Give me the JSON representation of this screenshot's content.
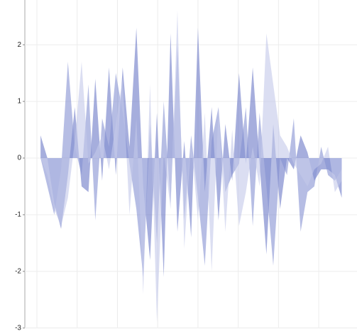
{
  "chart_data": {
    "type": "area",
    "x": [
      0.09,
      0.26,
      0.43,
      0.6,
      0.77,
      0.94,
      1.11,
      1.28,
      1.45,
      1.62,
      1.79,
      1.96,
      2.13,
      2.3,
      2.47,
      2.64,
      2.81,
      2.98,
      3.15,
      3.32,
      3.49,
      3.66,
      3.83,
      4.0,
      4.17,
      4.34,
      4.51,
      4.68,
      4.85,
      5.02,
      5.19,
      5.36,
      5.53,
      5.7,
      5.87,
      6.04,
      6.21,
      6.38,
      6.55,
      6.72,
      6.89,
      7.06,
      7.23,
      7.4,
      7.57
    ],
    "series": [
      {
        "color": "#6b78c6",
        "values": [
          0.4,
          0,
          -0.8,
          -1.25,
          -0.3,
          0.9,
          -0.5,
          -0.6,
          1.4,
          -0.4,
          1.6,
          -0.3,
          1.6,
          0.2,
          2.3,
          -0.5,
          -1.8,
          0.8,
          -2.1,
          2.2,
          -1.3,
          0.3,
          -1.4,
          2.3,
          -0.6,
          0.9,
          -1.1,
          0.6,
          -0.4,
          1.5,
          -0.1,
          1.6,
          -0.1,
          -1.7,
          0.6,
          -0.9,
          0.0,
          -0.2,
          0.4,
          0.1,
          -0.4,
          -0.2,
          -0.2,
          -0.3,
          -0.7
        ]
      },
      {
        "color": "#8591d2",
        "values": [
          0,
          -0.5,
          -1.0,
          -0.2,
          1.7,
          0.2,
          -0.3,
          1.3,
          -1.1,
          0.7,
          0.2,
          1.5,
          0.8,
          -0.1,
          -0.9,
          -2.1,
          0.6,
          -1.5,
          1.0,
          -0.8,
          2.0,
          -1.1,
          0.4,
          -0.7,
          -1.9,
          0.3,
          0.9,
          -0.6,
          -0.3,
          -0.1,
          0.9,
          -1.2,
          0.8,
          -0.5,
          -1.9,
          0.0,
          -0.3,
          0.7,
          -1.3,
          -0.6,
          -0.5,
          0.2,
          -0.3,
          -0.4,
          -0.2
        ]
      },
      {
        "color": "#c3c8ea",
        "values": [
          0,
          -0.3,
          -0.9,
          -1.2,
          -0.7,
          0.3,
          1.7,
          -0.1,
          0.1,
          0.4,
          -0.2,
          0.6,
          1.4,
          -1.0,
          0.7,
          -2.4,
          1.3,
          -2.9,
          0.1,
          -0.9,
          2.6,
          -1.6,
          0.3,
          -1.1,
          0.8,
          -2.0,
          0.9,
          -1.3,
          0.5,
          -1.2,
          -0.6,
          0.2,
          -0.5,
          2.2,
          1.3,
          0.4,
          0.2,
          -0.1,
          -0.3,
          -0.5,
          -0.2,
          -0.1,
          0.2,
          -0.6,
          -0.4
        ]
      }
    ],
    "xlim": [
      -0.3,
      7.95
    ],
    "xticks": [
      0,
      1,
      2,
      3,
      4,
      5,
      6,
      7
    ],
    "ylim": [
      -2.99,
      2.79
    ],
    "yticks": [
      -3,
      -2,
      -1,
      0,
      1,
      2
    ],
    "grid": true
  }
}
